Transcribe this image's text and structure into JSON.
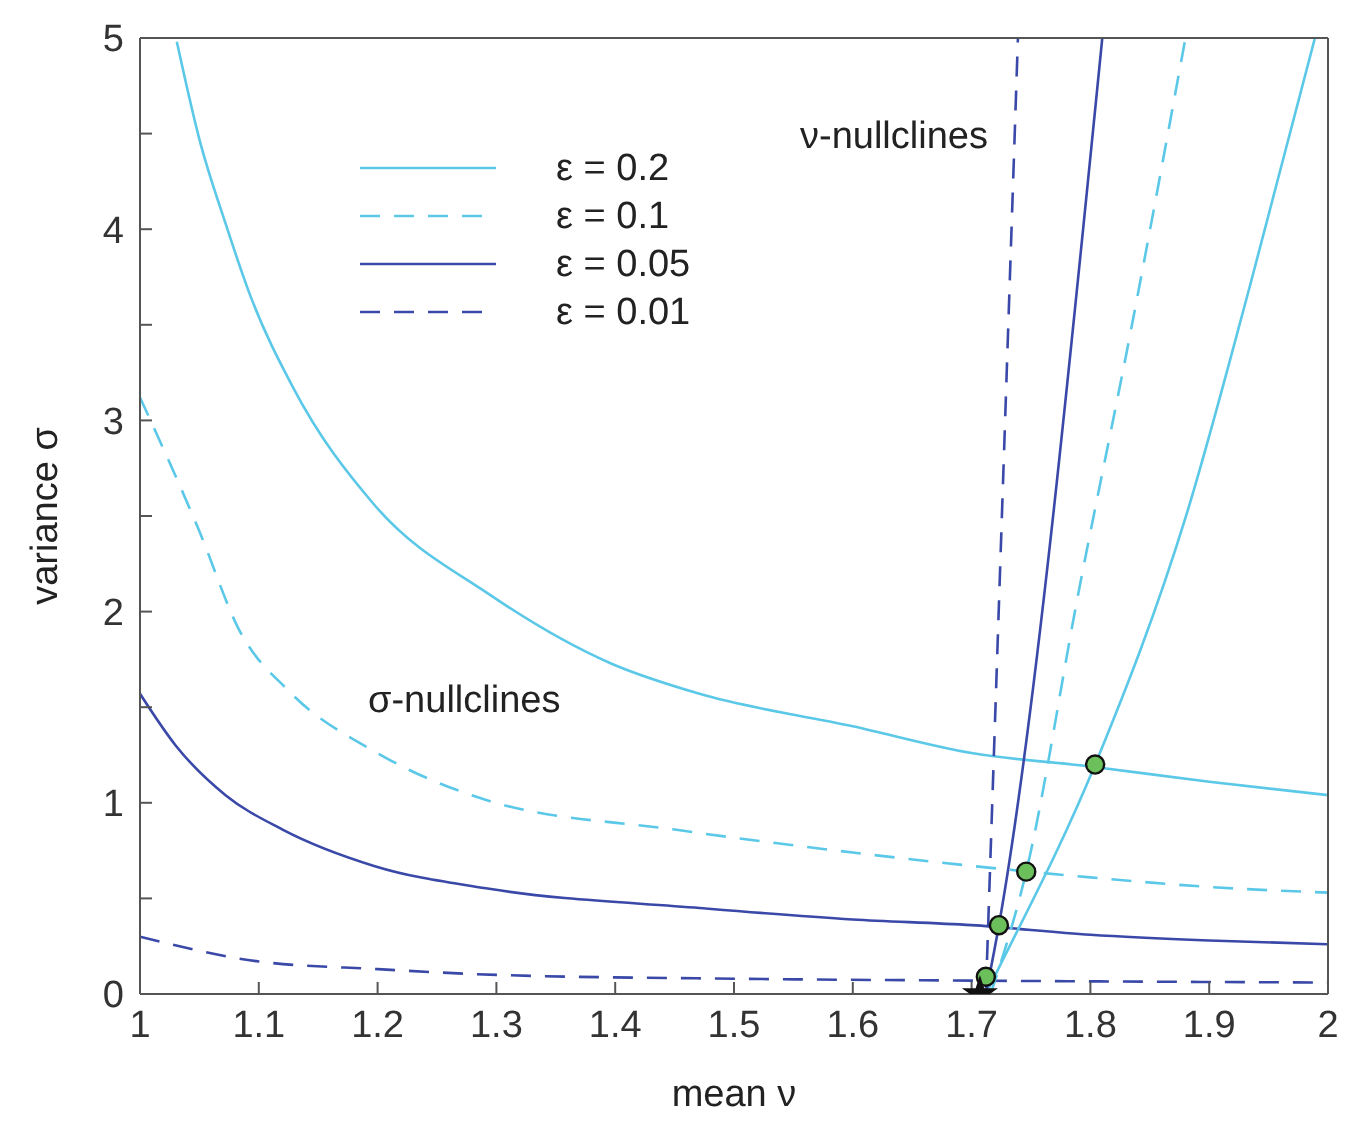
{
  "chart_data": {
    "type": "line",
    "xlabel": "mean ν",
    "ylabel": "variance σ",
    "xlim": [
      1,
      2
    ],
    "ylim": [
      0,
      5
    ],
    "xticks": [
      1,
      1.1,
      1.2,
      1.3,
      1.4,
      1.5,
      1.6,
      1.7,
      1.8,
      1.9,
      2
    ],
    "yticks": [
      0,
      {
        "value": 0.5,
        "label": null
      },
      1,
      {
        "value": 1.5,
        "label": null
      },
      2,
      {
        "value": 2.5,
        "label": null
      },
      3,
      {
        "value": 3.5,
        "label": null
      },
      4,
      {
        "value": 4.5,
        "label": null
      },
      5
    ],
    "legend": "top left",
    "marker": "none",
    "annotations": [
      "ν-nullclines",
      "σ-nullclines"
    ],
    "series": [
      {
        "name": "ε = 0.2",
        "color": "#5bc8e8",
        "line_style": "solid",
        "x": [
          1.031,
          1.05,
          1.072,
          1.093,
          1.129,
          1.197,
          1.294,
          1.396,
          1.471,
          1.6,
          1.7,
          1.8,
          1.9,
          2.0
        ],
        "values": [
          4.98,
          4.47,
          4.03,
          3.65,
          3.17,
          2.56,
          2.09,
          1.73,
          1.57,
          1.4,
          1.26,
          1.19,
          1.11,
          1.04
        ]
      },
      {
        "name": "ε = 0.1",
        "color": "#5bc8e8",
        "line_style": "dashed",
        "x": [
          1,
          1.05,
          1.083,
          1.126,
          1.197,
          1.294,
          1.45,
          1.6,
          1.7,
          1.8,
          1.9,
          2.0
        ],
        "values": [
          3.12,
          2.42,
          1.91,
          1.58,
          1.27,
          1.01,
          0.86,
          0.74,
          0.67,
          0.61,
          0.56,
          0.53
        ]
      },
      {
        "name": "ε = 0.05",
        "color": "#3a48a8",
        "line_style": "solid",
        "x": [
          1,
          1.03,
          1.072,
          1.12,
          1.197,
          1.294,
          1.471,
          1.6,
          1.7,
          1.8,
          1.9,
          2.0
        ],
        "values": [
          1.57,
          1.3,
          1.04,
          0.86,
          0.67,
          0.55,
          0.45,
          0.39,
          0.36,
          0.31,
          0.28,
          0.26
        ]
      },
      {
        "name": "ε = 0.01",
        "color": "#3a48a8",
        "line_style": "dashed",
        "x": [
          1,
          1.1,
          1.2,
          1.3,
          1.5,
          1.7,
          2.0
        ],
        "values": [
          0.3,
          0.17,
          0.13,
          0.1,
          0.08,
          0.07,
          0.06
        ]
      },
      {
        "color": "#5bc8e8",
        "line_style": "solid",
        "x": [
          1.712,
          1.72,
          1.804,
          1.88,
          1.935,
          1.989
        ],
        "values": [
          0,
          0.1,
          1.2,
          2.49,
          3.72,
          5
        ]
      },
      {
        "color": "#5bc8e8",
        "line_style": "dashed",
        "x": [
          1.716,
          1.746,
          1.79,
          1.835,
          1.88
        ],
        "values": [
          0,
          0.64,
          2.1,
          3.5,
          5
        ]
      },
      {
        "color": "#3a48a8",
        "line_style": "solid",
        "x": [
          1.712,
          1.723,
          1.81
        ],
        "values": [
          0,
          0.36,
          5
        ]
      },
      {
        "color": "#3a48a8",
        "line_style": "dashed",
        "x": [
          1.712,
          1.739
        ],
        "values": [
          0,
          5
        ]
      },
      {
        "type": "scatter",
        "marker": "circle",
        "color": "#6cc05c",
        "x": [
          1.804,
          1.746,
          1.723,
          1.712
        ],
        "values": [
          1.2,
          0.64,
          0.36,
          0.09
        ]
      },
      {
        "type": "scatter",
        "marker": "star",
        "color": "#111111",
        "x": [
          1.707
        ],
        "values": [
          0
        ]
      }
    ]
  }
}
